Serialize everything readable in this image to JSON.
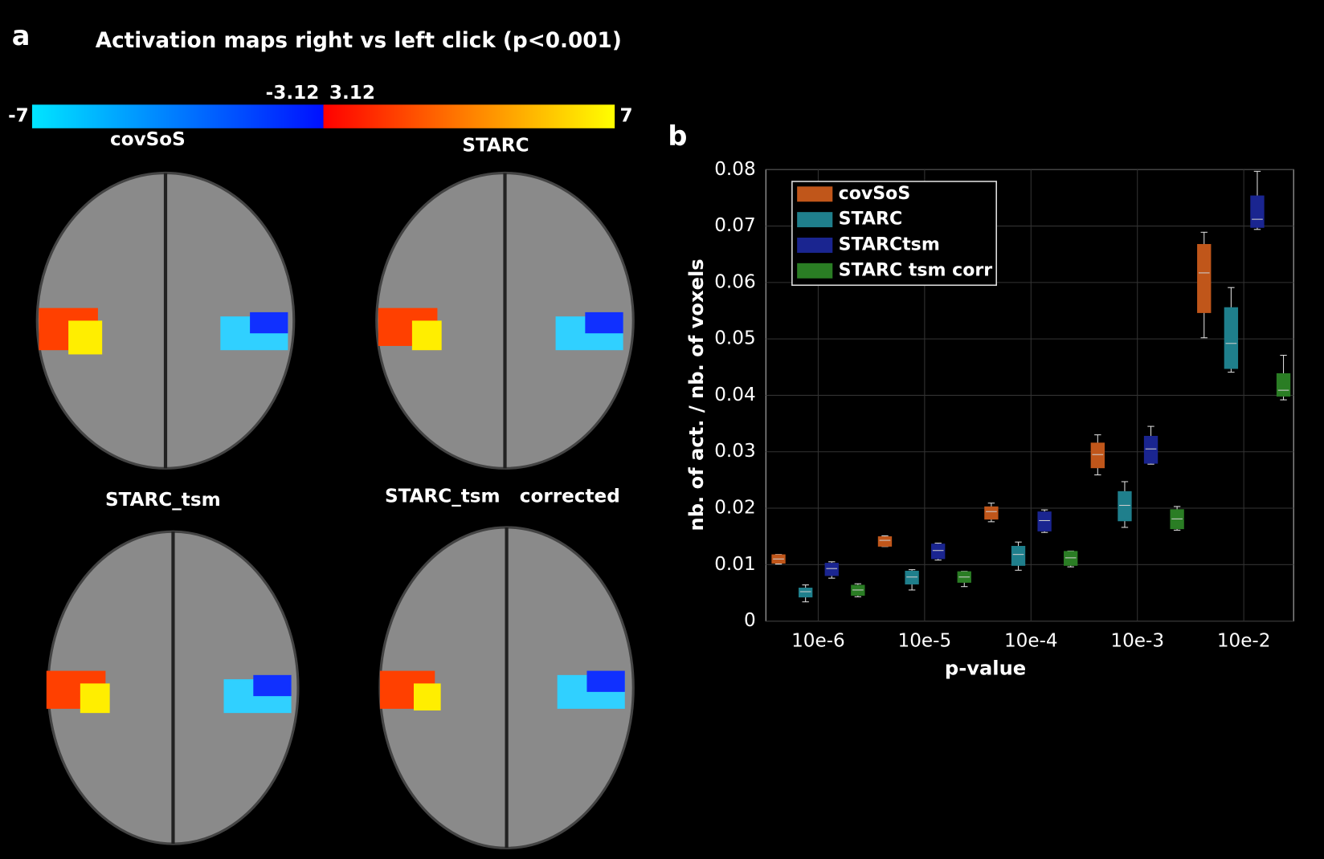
{
  "panel_a": {
    "letter": "a",
    "title": "Activation maps right vs left click (p<0.001)",
    "colorbar": {
      "ticks": [
        -7,
        -3.12,
        3.12,
        7
      ]
    },
    "maps": [
      "covSoS",
      "STARC",
      "STARC_tsm",
      "STARC_tsm   corrected"
    ]
  },
  "chart_data": {
    "type": "box",
    "letter": "b",
    "xlabel": "p-value",
    "ylabel": "nb. of act. / nb. of voxels",
    "categories": [
      "10e-6",
      "10e-5",
      "10e-4",
      "10e-3",
      "10e-2"
    ],
    "ylim": [
      0,
      0.08
    ],
    "yticks": [
      0,
      0.01,
      0.02,
      0.03,
      0.04,
      0.05,
      0.06,
      0.07,
      0.08
    ],
    "grid": true,
    "legend": "upper left",
    "series": [
      {
        "name": "covSoS",
        "color": "#c0561a",
        "values": [
          {
            "min": 0.0101,
            "q1": 0.0103,
            "median": 0.011,
            "q3": 0.0117,
            "max": 0.0118
          },
          {
            "min": 0.0132,
            "q1": 0.0133,
            "median": 0.0143,
            "q3": 0.0149,
            "max": 0.0151
          },
          {
            "min": 0.0176,
            "q1": 0.0181,
            "median": 0.0194,
            "q3": 0.0202,
            "max": 0.0209
          },
          {
            "min": 0.0259,
            "q1": 0.0272,
            "median": 0.0295,
            "q3": 0.0315,
            "max": 0.033
          },
          {
            "min": 0.0502,
            "q1": 0.0547,
            "median": 0.0617,
            "q3": 0.0667,
            "max": 0.0689
          }
        ]
      },
      {
        "name": "STARC",
        "color": "#1f7f8c",
        "values": [
          {
            "min": 0.0034,
            "q1": 0.0043,
            "median": 0.0052,
            "q3": 0.0058,
            "max": 0.0064
          },
          {
            "min": 0.0055,
            "q1": 0.0066,
            "median": 0.0078,
            "q3": 0.0088,
            "max": 0.0091
          },
          {
            "min": 0.009,
            "q1": 0.0099,
            "median": 0.0118,
            "q3": 0.0132,
            "max": 0.014
          },
          {
            "min": 0.0166,
            "q1": 0.0178,
            "median": 0.0205,
            "q3": 0.0229,
            "max": 0.0247
          },
          {
            "min": 0.0441,
            "q1": 0.0448,
            "median": 0.0492,
            "q3": 0.0555,
            "max": 0.0591
          }
        ]
      },
      {
        "name": "STARCtsm",
        "color": "#1a2590",
        "values": [
          {
            "min": 0.0076,
            "q1": 0.0081,
            "median": 0.0093,
            "q3": 0.0102,
            "max": 0.0105
          },
          {
            "min": 0.0108,
            "q1": 0.0111,
            "median": 0.0125,
            "q3": 0.0136,
            "max": 0.0138
          },
          {
            "min": 0.0157,
            "q1": 0.016,
            "median": 0.0178,
            "q3": 0.0193,
            "max": 0.0197
          },
          {
            "min": 0.0278,
            "q1": 0.028,
            "median": 0.0305,
            "q3": 0.0327,
            "max": 0.0345
          },
          {
            "min": 0.0694,
            "q1": 0.0698,
            "median": 0.0712,
            "q3": 0.0753,
            "max": 0.0797
          }
        ]
      },
      {
        "name": "STARC tsm corr",
        "color": "#2a7d24",
        "values": [
          {
            "min": 0.0043,
            "q1": 0.0046,
            "median": 0.0055,
            "q3": 0.0063,
            "max": 0.0066
          },
          {
            "min": 0.0061,
            "q1": 0.0069,
            "median": 0.0078,
            "q3": 0.0087,
            "max": 0.0088
          },
          {
            "min": 0.0096,
            "q1": 0.0099,
            "median": 0.0112,
            "q3": 0.0123,
            "max": 0.0124
          },
          {
            "min": 0.0161,
            "q1": 0.0164,
            "median": 0.0181,
            "q3": 0.0197,
            "max": 0.0203
          },
          {
            "min": 0.0392,
            "q1": 0.0399,
            "median": 0.0409,
            "q3": 0.0438,
            "max": 0.0471
          }
        ]
      }
    ]
  }
}
